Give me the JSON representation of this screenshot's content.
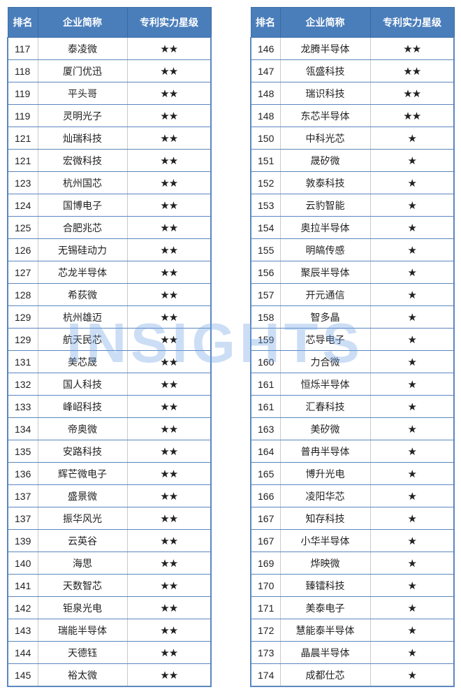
{
  "headers": {
    "rank": "排名",
    "name": "企业简称",
    "stars": "专利实力星级"
  },
  "watermark": "INSIGHTS",
  "colors": {
    "header_bg": "#4a7ebb",
    "border": "#5b87c0"
  },
  "left_table": [
    {
      "rank": "117",
      "name": "泰凌微",
      "stars": "★★"
    },
    {
      "rank": "118",
      "name": "厦门优迅",
      "stars": "★★"
    },
    {
      "rank": "119",
      "name": "平头哥",
      "stars": "★★"
    },
    {
      "rank": "119",
      "name": "灵明光子",
      "stars": "★★"
    },
    {
      "rank": "121",
      "name": "灿瑞科技",
      "stars": "★★"
    },
    {
      "rank": "121",
      "name": "宏微科技",
      "stars": "★★"
    },
    {
      "rank": "123",
      "name": "杭州国芯",
      "stars": "★★"
    },
    {
      "rank": "124",
      "name": "国博电子",
      "stars": "★★"
    },
    {
      "rank": "125",
      "name": "合肥兆芯",
      "stars": "★★"
    },
    {
      "rank": "126",
      "name": "无锡硅动力",
      "stars": "★★"
    },
    {
      "rank": "127",
      "name": "芯龙半导体",
      "stars": "★★"
    },
    {
      "rank": "128",
      "name": "希荻微",
      "stars": "★★"
    },
    {
      "rank": "129",
      "name": "杭州雄迈",
      "stars": "★★"
    },
    {
      "rank": "129",
      "name": "航天民芯",
      "stars": "★★"
    },
    {
      "rank": "131",
      "name": "美芯晟",
      "stars": "★★"
    },
    {
      "rank": "132",
      "name": "国人科技",
      "stars": "★★"
    },
    {
      "rank": "133",
      "name": "峰岹科技",
      "stars": "★★"
    },
    {
      "rank": "134",
      "name": "帝奥微",
      "stars": "★★"
    },
    {
      "rank": "135",
      "name": "安路科技",
      "stars": "★★"
    },
    {
      "rank": "136",
      "name": "辉芒微电子",
      "stars": "★★"
    },
    {
      "rank": "137",
      "name": "盛景微",
      "stars": "★★"
    },
    {
      "rank": "137",
      "name": "振华风光",
      "stars": "★★"
    },
    {
      "rank": "139",
      "name": "云英谷",
      "stars": "★★"
    },
    {
      "rank": "140",
      "name": "海思",
      "stars": "★★"
    },
    {
      "rank": "141",
      "name": "天数智芯",
      "stars": "★★"
    },
    {
      "rank": "142",
      "name": "钜泉光电",
      "stars": "★★"
    },
    {
      "rank": "143",
      "name": "瑞能半导体",
      "stars": "★★"
    },
    {
      "rank": "144",
      "name": "天德钰",
      "stars": "★★"
    },
    {
      "rank": "145",
      "name": "裕太微",
      "stars": "★★"
    }
  ],
  "right_table": [
    {
      "rank": "146",
      "name": "龙腾半导体",
      "stars": "★★"
    },
    {
      "rank": "147",
      "name": "瓴盛科技",
      "stars": "★★"
    },
    {
      "rank": "148",
      "name": "瑞识科技",
      "stars": "★★"
    },
    {
      "rank": "148",
      "name": "东芯半导体",
      "stars": "★★"
    },
    {
      "rank": "150",
      "name": "中科光芯",
      "stars": "★"
    },
    {
      "rank": "151",
      "name": "晟矽微",
      "stars": "★"
    },
    {
      "rank": "152",
      "name": "敦泰科技",
      "stars": "★"
    },
    {
      "rank": "153",
      "name": "云豹智能",
      "stars": "★"
    },
    {
      "rank": "154",
      "name": "奥拉半导体",
      "stars": "★"
    },
    {
      "rank": "155",
      "name": "明皜传感",
      "stars": "★"
    },
    {
      "rank": "156",
      "name": "聚辰半导体",
      "stars": "★"
    },
    {
      "rank": "157",
      "name": "开元通信",
      "stars": "★"
    },
    {
      "rank": "158",
      "name": "智多晶",
      "stars": "★"
    },
    {
      "rank": "159",
      "name": "芯导电子",
      "stars": "★"
    },
    {
      "rank": "160",
      "name": "力合微",
      "stars": "★"
    },
    {
      "rank": "161",
      "name": "恒烁半导体",
      "stars": "★"
    },
    {
      "rank": "161",
      "name": "汇春科技",
      "stars": "★"
    },
    {
      "rank": "163",
      "name": "美矽微",
      "stars": "★"
    },
    {
      "rank": "164",
      "name": "普冉半导体",
      "stars": "★"
    },
    {
      "rank": "165",
      "name": "博升光电",
      "stars": "★"
    },
    {
      "rank": "166",
      "name": "凌阳华芯",
      "stars": "★"
    },
    {
      "rank": "167",
      "name": "知存科技",
      "stars": "★"
    },
    {
      "rank": "167",
      "name": "小华半导体",
      "stars": "★"
    },
    {
      "rank": "169",
      "name": "烨映微",
      "stars": "★"
    },
    {
      "rank": "170",
      "name": "臻镭科技",
      "stars": "★"
    },
    {
      "rank": "171",
      "name": "美泰电子",
      "stars": "★"
    },
    {
      "rank": "172",
      "name": "慧能泰半导体",
      "stars": "★"
    },
    {
      "rank": "173",
      "name": "晶晨半导体",
      "stars": "★"
    },
    {
      "rank": "174",
      "name": "成都仕芯",
      "stars": "★"
    }
  ]
}
